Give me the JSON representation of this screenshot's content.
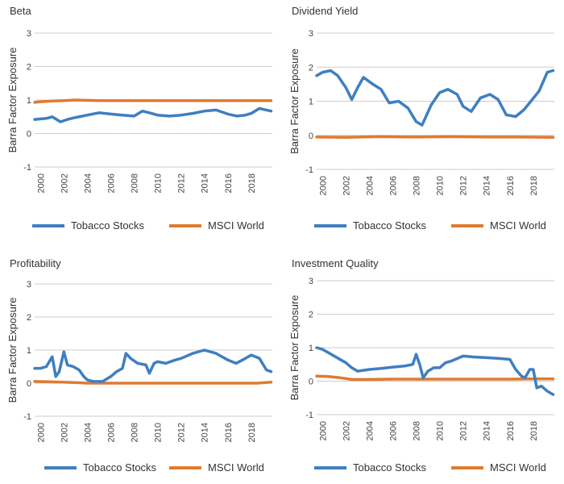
{
  "colors": {
    "tobacco": "#3f7fbf",
    "msci": "#e07a30",
    "grid": "#cccccc",
    "axis": "#555555"
  },
  "chart_data": [
    {
      "type": "line",
      "title": "Beta",
      "ylabel": "Barra Factor Exposure",
      "ylim": [
        -1,
        3
      ],
      "yticks": [
        "3",
        "2",
        "1",
        "0",
        "-1"
      ],
      "xticks": [
        "2000",
        "2002",
        "2004",
        "2006",
        "2008",
        "2010",
        "2012",
        "2014",
        "2016",
        "2018"
      ],
      "legend": "bottom",
      "series": [
        {
          "name": "Tobacco Stocks",
          "x": [
            1999.5,
            2000.5,
            2001,
            2001.7,
            2002.3,
            2003,
            2004,
            2005,
            2006,
            2007,
            2008,
            2008.7,
            2009.3,
            2010,
            2011,
            2012,
            2013,
            2014,
            2015,
            2016,
            2016.8,
            2017.5,
            2018,
            2018.7,
            2019.3,
            2019.7
          ],
          "y": [
            0.42,
            0.45,
            0.5,
            0.35,
            0.42,
            0.48,
            0.55,
            0.62,
            0.58,
            0.55,
            0.52,
            0.67,
            0.62,
            0.55,
            0.52,
            0.55,
            0.6,
            0.67,
            0.7,
            0.58,
            0.52,
            0.55,
            0.6,
            0.75,
            0.7,
            0.67
          ]
        },
        {
          "name": "MSCI World",
          "x": [
            1999.5,
            2000,
            2001,
            2002,
            2003,
            2005,
            2007,
            2009,
            2011,
            2013,
            2015,
            2017,
            2019.7
          ],
          "y": [
            0.93,
            0.95,
            0.97,
            0.98,
            1.0,
            0.98,
            0.98,
            0.98,
            0.98,
            0.98,
            0.98,
            0.98,
            0.98
          ]
        }
      ]
    },
    {
      "type": "line",
      "title": "Dividend Yield",
      "ylabel": "Barra Factor Exposure",
      "ylim": [
        -1,
        3
      ],
      "yticks": [
        "3",
        "2",
        "1",
        "0",
        "-1"
      ],
      "xticks": [
        "2000",
        "2002",
        "2004",
        "2006",
        "2008",
        "2010",
        "2012",
        "2014",
        "2016",
        "2018"
      ],
      "legend": "bottom",
      "series": [
        {
          "name": "Tobacco Stocks",
          "x": [
            1999.5,
            2000,
            2000.7,
            2001.3,
            2002,
            2002.5,
            2003,
            2003.5,
            2004.3,
            2005,
            2005.7,
            2006.5,
            2007.3,
            2008,
            2008.5,
            2009.3,
            2010,
            2010.7,
            2011.5,
            2012,
            2012.7,
            2013.5,
            2014.3,
            2015,
            2015.7,
            2016.5,
            2017.2,
            2017.8,
            2018.5,
            2019.2,
            2019.7
          ],
          "y": [
            1.75,
            1.85,
            1.9,
            1.75,
            1.4,
            1.05,
            1.4,
            1.7,
            1.5,
            1.35,
            0.95,
            1.0,
            0.8,
            0.4,
            0.3,
            0.9,
            1.25,
            1.35,
            1.2,
            0.85,
            0.7,
            1.1,
            1.2,
            1.05,
            0.6,
            0.55,
            0.75,
            1.0,
            1.3,
            1.85,
            1.9
          ]
        },
        {
          "name": "MSCI World",
          "x": [
            1999.5,
            2002,
            2005,
            2008,
            2011,
            2014,
            2017,
            2019.7
          ],
          "y": [
            -0.05,
            -0.06,
            -0.04,
            -0.05,
            -0.04,
            -0.05,
            -0.05,
            -0.06
          ]
        }
      ]
    },
    {
      "type": "line",
      "title": "Profitability",
      "ylabel": "Barra Factor Exposure",
      "ylim": [
        -1,
        3
      ],
      "yticks": [
        "3",
        "2",
        "1",
        "0",
        "-1"
      ],
      "xticks": [
        "2000",
        "2002",
        "2004",
        "2006",
        "2008",
        "2010",
        "2012",
        "2014",
        "2016",
        "2018"
      ],
      "legend": "bottom",
      "series": [
        {
          "name": "Tobacco Stocks",
          "x": [
            1999.5,
            2000,
            2000.5,
            2001,
            2001.3,
            2001.6,
            2002,
            2002.3,
            2002.8,
            2003.3,
            2003.7,
            2004,
            2004.5,
            2005.3,
            2006,
            2006.5,
            2007,
            2007.3,
            2007.7,
            2008.3,
            2009,
            2009.3,
            2009.7,
            2010,
            2010.7,
            2011.5,
            2012,
            2013,
            2014,
            2015,
            2016,
            2016.7,
            2017.5,
            2018,
            2018.7,
            2019.3,
            2019.7
          ],
          "y": [
            0.45,
            0.45,
            0.5,
            0.8,
            0.2,
            0.35,
            0.95,
            0.55,
            0.5,
            0.4,
            0.2,
            0.1,
            0.05,
            0.05,
            0.2,
            0.35,
            0.45,
            0.9,
            0.75,
            0.6,
            0.55,
            0.3,
            0.6,
            0.65,
            0.6,
            0.7,
            0.75,
            0.9,
            1.0,
            0.9,
            0.7,
            0.6,
            0.75,
            0.85,
            0.75,
            0.4,
            0.35
          ]
        },
        {
          "name": "MSCI World",
          "x": [
            1999.5,
            2001,
            2003,
            2004,
            2005,
            2007,
            2009,
            2011,
            2013,
            2015,
            2017,
            2018.5,
            2019.7
          ],
          "y": [
            0.05,
            0.04,
            0.02,
            0.0,
            0.0,
            0.0,
            0.0,
            0.0,
            0.0,
            0.0,
            0.0,
            0.0,
            0.03
          ]
        }
      ]
    },
    {
      "type": "line",
      "title": "Investment Quality",
      "ylabel": "Barra Factor Exposure",
      "ylim": [
        -1,
        3
      ],
      "yticks": [
        "3",
        "2",
        "1",
        "0",
        "-1"
      ],
      "xticks": [
        "2000",
        "2002",
        "2004",
        "2006",
        "2008",
        "2010",
        "2012",
        "2014",
        "2016",
        "2018"
      ],
      "legend": "bottom",
      "series": [
        {
          "name": "Tobacco Stocks",
          "x": [
            1999.5,
            2000,
            2000.5,
            2001,
            2002,
            2002.5,
            2003,
            2004,
            2005,
            2006,
            2007,
            2007.7,
            2008,
            2008.3,
            2008.6,
            2009,
            2009.5,
            2010,
            2010.5,
            2011,
            2012,
            2013,
            2014,
            2015,
            2016,
            2016.5,
            2017,
            2017.3,
            2017.7,
            2018,
            2018.3,
            2018.7,
            2019.2,
            2019.7
          ],
          "y": [
            1.0,
            0.95,
            0.85,
            0.75,
            0.55,
            0.4,
            0.3,
            0.35,
            0.38,
            0.42,
            0.45,
            0.5,
            0.8,
            0.5,
            0.1,
            0.3,
            0.4,
            0.4,
            0.55,
            0.6,
            0.75,
            0.72,
            0.7,
            0.68,
            0.65,
            0.35,
            0.15,
            0.1,
            0.35,
            0.35,
            -0.2,
            -0.15,
            -0.3,
            -0.4
          ]
        },
        {
          "name": "MSCI World",
          "x": [
            1999.5,
            2000.5,
            2001.5,
            2002.5,
            2004,
            2006,
            2008,
            2010,
            2012,
            2014,
            2016,
            2018,
            2019.7
          ],
          "y": [
            0.15,
            0.14,
            0.1,
            0.05,
            0.05,
            0.06,
            0.06,
            0.06,
            0.06,
            0.06,
            0.06,
            0.07,
            0.07
          ]
        }
      ]
    }
  ]
}
